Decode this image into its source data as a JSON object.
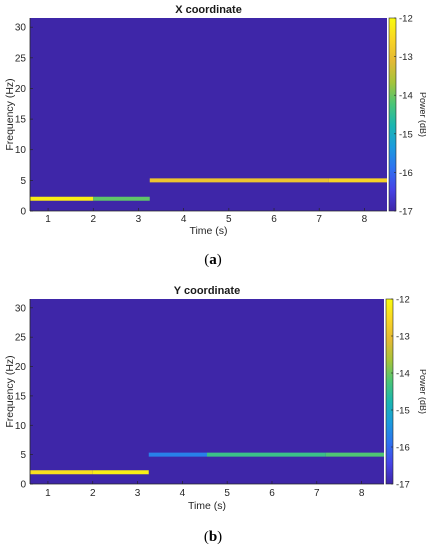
{
  "colors": {
    "background": "#3a1fae",
    "axis": "#262626"
  },
  "colormap": [
    "#3e26a8",
    "#4743e6",
    "#2e72f0",
    "#1b9bdd",
    "#1ab6b0",
    "#4bc576",
    "#a5c43a",
    "#e4b934",
    "#f9d525",
    "#f9fb0e"
  ],
  "chart_data": [
    {
      "type": "heatmap",
      "panel_label": "a",
      "title": "X coordinate",
      "xlabel": "Time (s)",
      "ylabel": "Frequency (Hz)",
      "xlim": [
        0.6,
        8.5
      ],
      "ylim": [
        0,
        31.5
      ],
      "xticks": [
        1,
        2,
        3,
        4,
        5,
        6,
        7,
        8
      ],
      "yticks": [
        0,
        5,
        10,
        15,
        20,
        25,
        30
      ],
      "colorbar": {
        "label": "Power (dB)",
        "range": [
          -17,
          -12
        ],
        "ticks": [
          -12,
          -13,
          -14,
          -15,
          -16,
          -17
        ]
      },
      "background_value": -17,
      "segments": [
        {
          "t_start": 0.6,
          "t_end": 2.0,
          "freq": 2.0,
          "power": -12.2
        },
        {
          "t_start": 2.0,
          "t_end": 3.25,
          "freq": 2.0,
          "power": -14.1
        },
        {
          "t_start": 3.25,
          "t_end": 7.2,
          "freq": 5.0,
          "power": -12.9
        },
        {
          "t_start": 7.2,
          "t_end": 8.5,
          "freq": 5.0,
          "power": -12.6
        }
      ]
    },
    {
      "type": "heatmap",
      "panel_label": "b",
      "title": "Y coordinate",
      "xlabel": "Time (s)",
      "ylabel": "Frequency (Hz)",
      "xlim": [
        0.6,
        8.5
      ],
      "ylim": [
        0,
        31.5
      ],
      "xticks": [
        1,
        2,
        3,
        4,
        5,
        6,
        7,
        8
      ],
      "yticks": [
        0,
        5,
        10,
        15,
        20,
        25,
        30
      ],
      "colorbar": {
        "label": "Power (dB)",
        "range": [
          -17,
          -12
        ],
        "ticks": [
          -12,
          -13,
          -14,
          -15,
          -16,
          -17
        ]
      },
      "background_value": -17,
      "segments": [
        {
          "t_start": 0.6,
          "t_end": 2.0,
          "freq": 2.0,
          "power": -12.4
        },
        {
          "t_start": 2.0,
          "t_end": 3.25,
          "freq": 2.0,
          "power": -12.2
        },
        {
          "t_start": 3.25,
          "t_end": 4.55,
          "freq": 5.0,
          "power": -15.7
        },
        {
          "t_start": 4.55,
          "t_end": 7.2,
          "freq": 5.0,
          "power": -14.4
        },
        {
          "t_start": 7.2,
          "t_end": 8.5,
          "freq": 5.0,
          "power": -14.2
        }
      ]
    }
  ]
}
